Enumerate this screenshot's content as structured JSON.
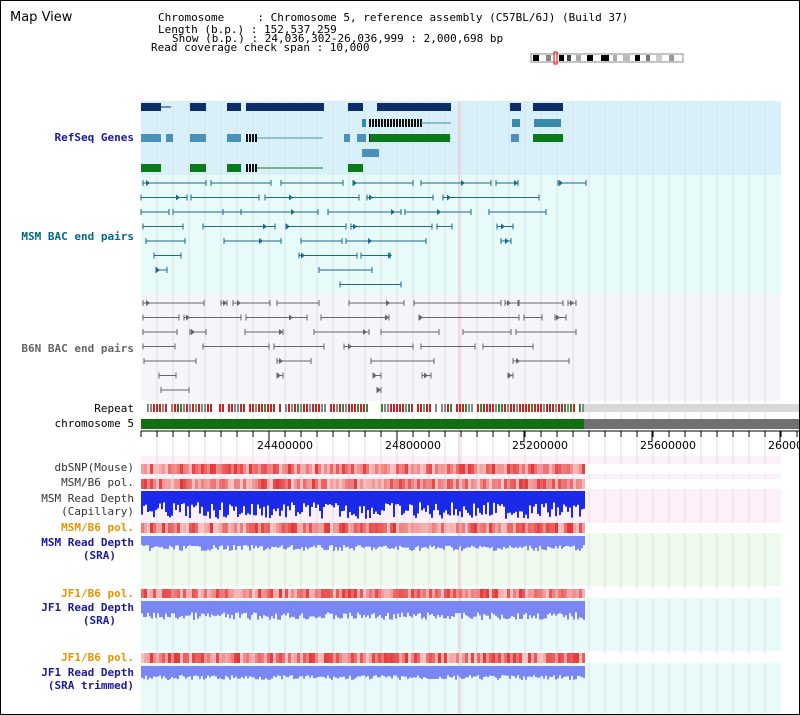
{
  "header": {
    "title": "Map View",
    "info_lines": [
      "Chromosome     : Chromosome 5, reference assembly (C57BL/6J) (Build 37)",
      "Length (b.p.) : 152,537,259",
      "Show (b.p.) : 24,036,302-26,036,999 : 2,000,698 bp",
      "Read coverage check span : 10,000"
    ]
  },
  "tracks": {
    "refseq": "RefSeq Genes",
    "msm_bac": "MSM BAC end pairs",
    "b6n_bac": "B6N BAC end pairs",
    "repeat": "Repeat",
    "chromosome": "chromosome 5",
    "dbsnp": "dbSNP(Mouse)",
    "msm_b6_pol_1": "MSM/B6 pol.",
    "msm_read_depth_cap_1": "MSM Read Depth",
    "msm_read_depth_cap_2": "(Capillary)",
    "msm_b6_pol_2": "MSM/B6 pol.",
    "msm_read_depth_sra_1": "MSM Read Depth",
    "msm_read_depth_sra_2": "(SRA)",
    "jf1_b6_pol_1": "JF1/B6 pol.",
    "jf1_read_depth_sra_1": "JF1 Read Depth",
    "jf1_read_depth_sra_2": "(SRA)",
    "jf1_b6_pol_2": "JF1/B6 pol.",
    "jf1_read_depth_trim_1": "JF1 Read Depth",
    "jf1_read_depth_trim_2": "(SRA trimmed)"
  },
  "axis": {
    "ticks": [
      "24400000",
      "24800000",
      "25200000",
      "25600000",
      "26000000"
    ]
  },
  "colors": {
    "refseq_label": "#1a1aa0",
    "msm_label": "#006a8a",
    "b6n_label": "#666666",
    "orange_label": "#e59400",
    "blue_label": "#1a1aa0",
    "chromosome_bar": "#107010",
    "depth_dark": "#1a2ae8",
    "depth_light": "#7b86f5"
  }
}
